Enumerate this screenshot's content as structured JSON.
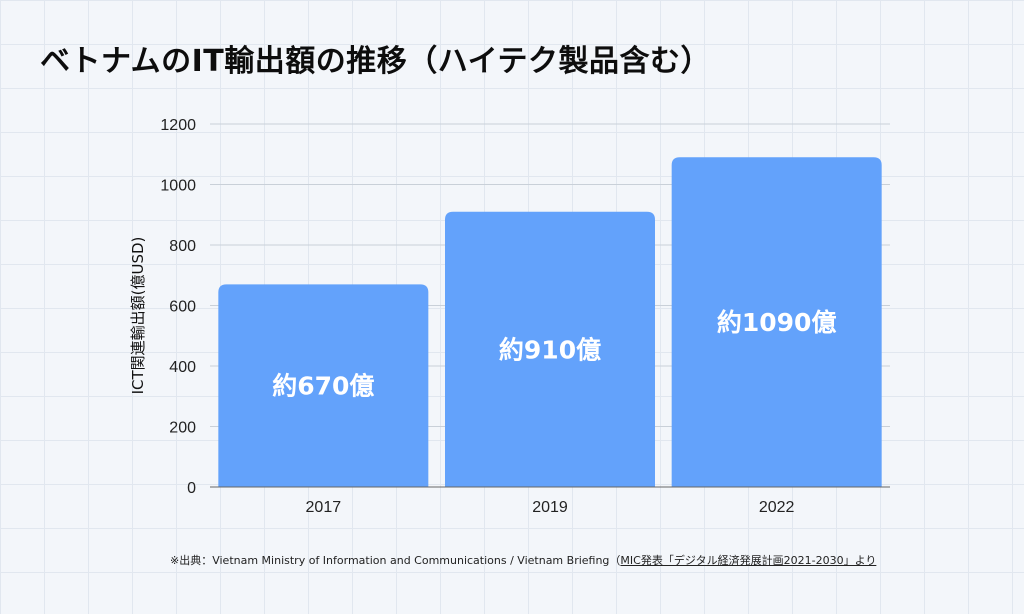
{
  "title": "ベトナムのIT輸出額の推移（ハイテク製品含む）",
  "source": {
    "prefix": "※出典：Vietnam Ministry of Information and Communications / Vietnam Briefing（",
    "link": "MIC発表「デジタル経済発展計画2021-2030」より"
  },
  "colors": {
    "bar": "#63a2fb",
    "grid": "#c9d0d8",
    "axis": "#666666"
  },
  "chart_data": {
    "type": "bar",
    "title": "",
    "xlabel": "",
    "ylabel": "ICT関連輸出額(億USD)",
    "categories": [
      "2017",
      "2019",
      "2022"
    ],
    "values": [
      670,
      910,
      1090
    ],
    "data_labels": [
      "約670億",
      "約910億",
      "約1090億"
    ],
    "ylim": [
      0,
      1200
    ],
    "yticks": [
      0,
      200,
      400,
      600,
      800,
      1000,
      1200
    ],
    "grid": true,
    "legend": "none"
  }
}
